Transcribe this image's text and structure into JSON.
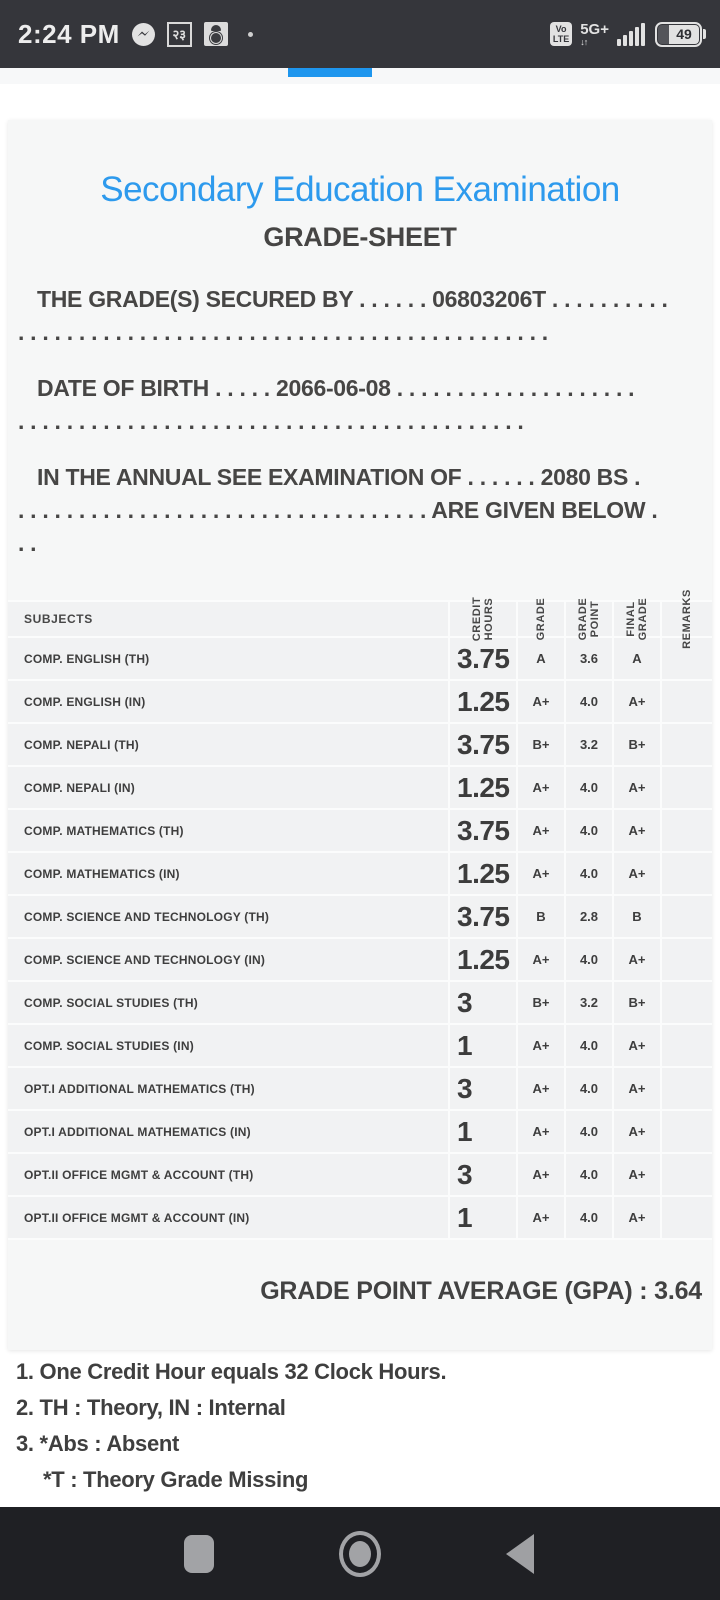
{
  "status_bar": {
    "time": "2:24 PM",
    "nepali_badge_text": "२३",
    "volte_text": "Vo\nLTE",
    "network_text": "5G+",
    "network_arrows": "↓↑",
    "battery_percent": "49"
  },
  "tab_strip": {
    "indicator_color": "#1e96ee"
  },
  "document": {
    "title": "Secondary Education Examination",
    "subtitle": "GRADE-SHEET",
    "accent_color": "#2d9aed",
    "paragraphs": [
      {
        "lines": [
          "THE GRADE(S) SECURED BY . . . . . . 06803206T . . . . . . . . . .",
          ". . . . . . . . . . . . . . . . . . . . . . . . . . . . . . . . . . . . . . . . . . . ."
        ]
      },
      {
        "lines": [
          "DATE OF BIRTH . . . . . 2066-06-08 . . . . . . . . . . . . . . . . . . . .",
          ". . . . . . . . . . . . . . . . . . . . . . . . . . . . . . . . . . . . . . . . . ."
        ]
      },
      {
        "lines": [
          "IN THE ANNUAL SEE EXAMINATION OF . . . . . . 2080 BS .",
          ". . . . . . . . . . . . . . . . . . . . . . . . . . . . . . . . . . ARE GIVEN BELOW .",
          ". ."
        ]
      }
    ],
    "table": {
      "headers": [
        "SUBJECTS",
        "CREDIT\nHOURS",
        "GRADE",
        "GRADE\nPOINT",
        "FINAL\nGRADE",
        "REMARKS"
      ],
      "rows": [
        {
          "subject": "COMP. ENGLISH (TH)",
          "credit_hours": "3.75",
          "grade": "A",
          "grade_point": "3.6",
          "final_grade": "A",
          "remarks": ""
        },
        {
          "subject": "COMP. ENGLISH (IN)",
          "credit_hours": "1.25",
          "grade": "A+",
          "grade_point": "4.0",
          "final_grade": "A+",
          "remarks": ""
        },
        {
          "subject": "COMP. NEPALI (TH)",
          "credit_hours": "3.75",
          "grade": "B+",
          "grade_point": "3.2",
          "final_grade": "B+",
          "remarks": ""
        },
        {
          "subject": "COMP. NEPALI (IN)",
          "credit_hours": "1.25",
          "grade": "A+",
          "grade_point": "4.0",
          "final_grade": "A+",
          "remarks": ""
        },
        {
          "subject": "COMP. MATHEMATICS (TH)",
          "credit_hours": "3.75",
          "grade": "A+",
          "grade_point": "4.0",
          "final_grade": "A+",
          "remarks": ""
        },
        {
          "subject": "COMP. MATHEMATICS (IN)",
          "credit_hours": "1.25",
          "grade": "A+",
          "grade_point": "4.0",
          "final_grade": "A+",
          "remarks": ""
        },
        {
          "subject": "COMP. SCIENCE AND TECHNOLOGY (TH)",
          "credit_hours": "3.75",
          "grade": "B",
          "grade_point": "2.8",
          "final_grade": "B",
          "remarks": ""
        },
        {
          "subject": "COMP. SCIENCE AND TECHNOLOGY (IN)",
          "credit_hours": "1.25",
          "grade": "A+",
          "grade_point": "4.0",
          "final_grade": "A+",
          "remarks": ""
        },
        {
          "subject": "COMP. SOCIAL STUDIES (TH)",
          "credit_hours": "3",
          "grade": "B+",
          "grade_point": "3.2",
          "final_grade": "B+",
          "remarks": ""
        },
        {
          "subject": "COMP. SOCIAL STUDIES (IN)",
          "credit_hours": "1",
          "grade": "A+",
          "grade_point": "4.0",
          "final_grade": "A+",
          "remarks": ""
        },
        {
          "subject": "OPT.I ADDITIONAL MATHEMATICS (TH)",
          "credit_hours": "3",
          "grade": "A+",
          "grade_point": "4.0",
          "final_grade": "A+",
          "remarks": ""
        },
        {
          "subject": "OPT.I ADDITIONAL MATHEMATICS (IN)",
          "credit_hours": "1",
          "grade": "A+",
          "grade_point": "4.0",
          "final_grade": "A+",
          "remarks": ""
        },
        {
          "subject": "OPT.II OFFICE MGMT & ACCOUNT (TH)",
          "credit_hours": "3",
          "grade": "A+",
          "grade_point": "4.0",
          "final_grade": "A+",
          "remarks": ""
        },
        {
          "subject": "OPT.II OFFICE MGMT & ACCOUNT (IN)",
          "credit_hours": "1",
          "grade": "A+",
          "grade_point": "4.0",
          "final_grade": "A+",
          "remarks": ""
        }
      ]
    },
    "gpa_text": "GRADE POINT AVERAGE (GPA) : 3.64",
    "notes": [
      "1. One Credit Hour equals 32 Clock Hours.",
      "2. TH : Theory, IN : Internal",
      "3. *Abs : Absent",
      "*T : Theory Grade Missing"
    ]
  }
}
